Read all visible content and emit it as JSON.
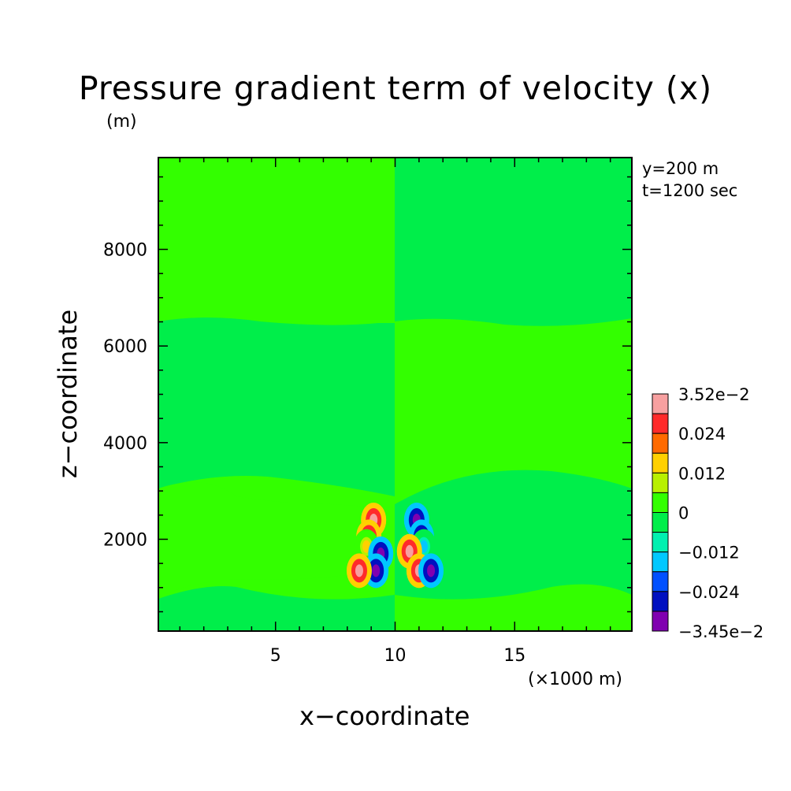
{
  "title": "Pressure gradient term of velocity (x)",
  "unit_label": "(m)",
  "annotations": {
    "y": "y=200 m",
    "t": "t=1200 sec"
  },
  "chart_data": {
    "type": "heatmap",
    "title": "Pressure gradient term of velocity (x)",
    "xlabel": "x−coordinate",
    "ylabel": "z−coordinate",
    "x_unit_label": "(×1000 m)",
    "y_unit_label": "(m)",
    "xlim": [
      0.1,
      19.9
    ],
    "ylim": [
      100,
      9900
    ],
    "x_ticks": [
      5,
      10,
      15
    ],
    "y_ticks": [
      2000,
      4000,
      6000,
      8000
    ],
    "x_tick_labels": [
      "5",
      "10",
      "15"
    ],
    "y_tick_labels": [
      "2000",
      "4000",
      "6000",
      "8000"
    ],
    "colorbar": {
      "max_label": "3.52e−2",
      "min_label": "−3.45e−2",
      "tick_labels": [
        "0.024",
        "0.012",
        "0",
        "−0.012",
        "−0.024"
      ],
      "levels_top_to_bottom": [
        {
          "color": "#f7a0a0"
        },
        {
          "color": "#ff2a2a"
        },
        {
          "color": "#ff6a00"
        },
        {
          "color": "#ffd000"
        },
        {
          "color": "#b8f000"
        },
        {
          "color": "#33ff00"
        },
        {
          "color": "#00ee4a"
        },
        {
          "color": "#00f0b0"
        },
        {
          "color": "#00c8ff"
        },
        {
          "color": "#0050ff"
        },
        {
          "color": "#0010c0"
        },
        {
          "color": "#8000b0"
        }
      ]
    },
    "background_colors": {
      "positive_small": "#33ff00",
      "negative_small": "#00ee4a"
    },
    "features": [
      {
        "x": 9.1,
        "z": 2400,
        "value": 0.03
      },
      {
        "x": 8.9,
        "z": 2050,
        "value": 0.03
      },
      {
        "x": 8.8,
        "z": 1850,
        "value": 0.012
      },
      {
        "x": 9.4,
        "z": 1700,
        "value": -0.03
      },
      {
        "x": 9.2,
        "z": 1350,
        "value": -0.03
      },
      {
        "x": 8.5,
        "z": 1350,
        "value": 0.03
      },
      {
        "x": 10.9,
        "z": 2400,
        "value": -0.03
      },
      {
        "x": 11.1,
        "z": 2050,
        "value": -0.03
      },
      {
        "x": 11.2,
        "z": 1850,
        "value": -0.012
      },
      {
        "x": 10.6,
        "z": 1750,
        "value": 0.03
      },
      {
        "x": 11.0,
        "z": 1350,
        "value": 0.03
      },
      {
        "x": 11.5,
        "z": 1350,
        "value": -0.03
      }
    ]
  }
}
